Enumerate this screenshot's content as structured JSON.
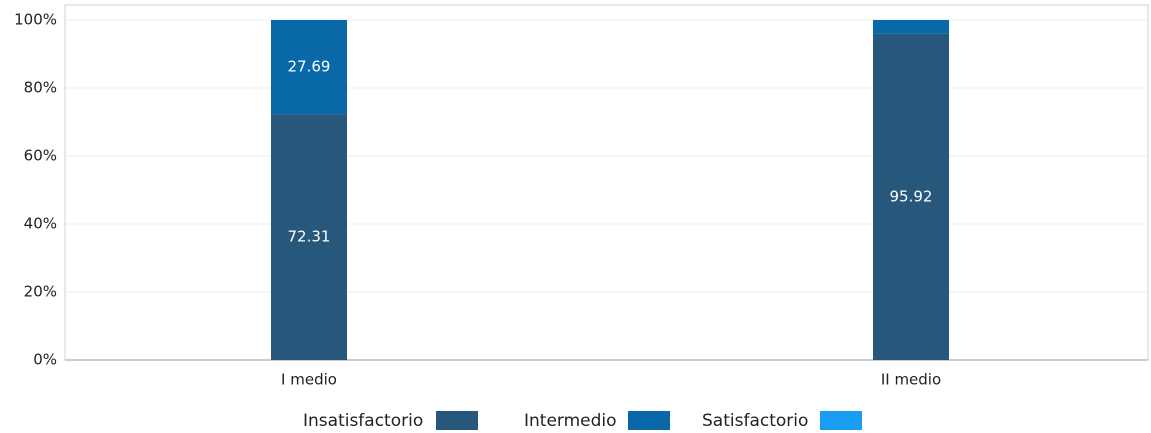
{
  "chart_data": {
    "type": "stacked-bar",
    "categories": [
      "I medio",
      "II medio"
    ],
    "series": [
      {
        "name": "Insatisfactorio",
        "color": "#27577a",
        "values": [
          72.31,
          95.92
        ]
      },
      {
        "name": "Intermedio",
        "color": "#0868a8",
        "values": [
          27.69,
          4.08
        ]
      },
      {
        "name": "Satisfactorio",
        "color": "#1a9cf0",
        "values": [
          0,
          0
        ]
      }
    ],
    "ylim": [
      0,
      100
    ],
    "yticks": [
      {
        "value": 0,
        "label": "0%"
      },
      {
        "value": 20,
        "label": "20%"
      },
      {
        "value": 40,
        "label": "40%"
      },
      {
        "value": 60,
        "label": "60%"
      },
      {
        "value": 80,
        "label": "80%"
      },
      {
        "value": 100,
        "label": "100%"
      }
    ],
    "grid": true,
    "legend": "bottom"
  }
}
